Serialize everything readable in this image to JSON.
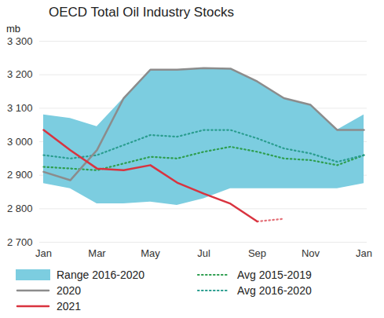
{
  "chart_data": {
    "type": "line",
    "title": "OECD Total Oil Industry Stocks",
    "y_label": "mb",
    "categories": [
      "Jan",
      null,
      "Mar",
      null,
      "May",
      null,
      "Jul",
      null,
      "Sep",
      null,
      "Nov",
      null,
      "Jan"
    ],
    "ylim": [
      2700,
      3300
    ],
    "yticks": [
      {
        "value": 2700,
        "label": "2 700"
      },
      {
        "value": 2800,
        "label": "2 800"
      },
      {
        "value": 2900,
        "label": "2 900"
      },
      {
        "value": 3000,
        "label": "3 000"
      },
      {
        "value": 3100,
        "label": "3 100"
      },
      {
        "value": 3200,
        "label": "3 200"
      },
      {
        "value": 3300,
        "label": "3 300"
      }
    ],
    "grid": true,
    "legend": "bottom",
    "series": [
      {
        "name": "Range 2016-2020",
        "type": "area",
        "color": "#7ccde0",
        "low": [
          2875,
          2860,
          2815,
          2815,
          2820,
          2810,
          2830,
          2860,
          2860,
          2860,
          2860,
          2860,
          2875
        ],
        "high": [
          3080,
          3070,
          3045,
          3130,
          3215,
          3215,
          3220,
          3218,
          3180,
          3130,
          3110,
          3035,
          3080
        ]
      },
      {
        "name": "2020",
        "type": "line",
        "color": "#8c8c8c",
        "line_style": "solid",
        "values": [
          2910,
          2885,
          2975,
          3130,
          3215,
          3215,
          3220,
          3218,
          3180,
          3130,
          3110,
          3035,
          3035
        ]
      },
      {
        "name": "2021",
        "type": "line",
        "color": "#d9333f",
        "line_style": "solid",
        "values": [
          3035,
          2975,
          2920,
          2915,
          2930,
          2878,
          2845,
          2815,
          2762,
          null,
          null,
          null,
          null
        ],
        "estimate_values": [
          null,
          null,
          null,
          null,
          null,
          null,
          null,
          null,
          2762,
          2770,
          null,
          null,
          null
        ]
      },
      {
        "name": "Avg 2015-2019",
        "type": "line",
        "color": "#2e9e4f",
        "line_style": "dotted",
        "values": [
          2925,
          2920,
          2915,
          2935,
          2955,
          2950,
          2970,
          2985,
          2970,
          2950,
          2945,
          2930,
          2960
        ]
      },
      {
        "name": "Avg 2016-2020",
        "type": "line",
        "color": "#2a9d8f",
        "line_style": "dotted",
        "values": [
          2960,
          2950,
          2960,
          2990,
          3020,
          3015,
          3035,
          3035,
          3010,
          2980,
          2965,
          2940,
          2960
        ]
      }
    ]
  }
}
